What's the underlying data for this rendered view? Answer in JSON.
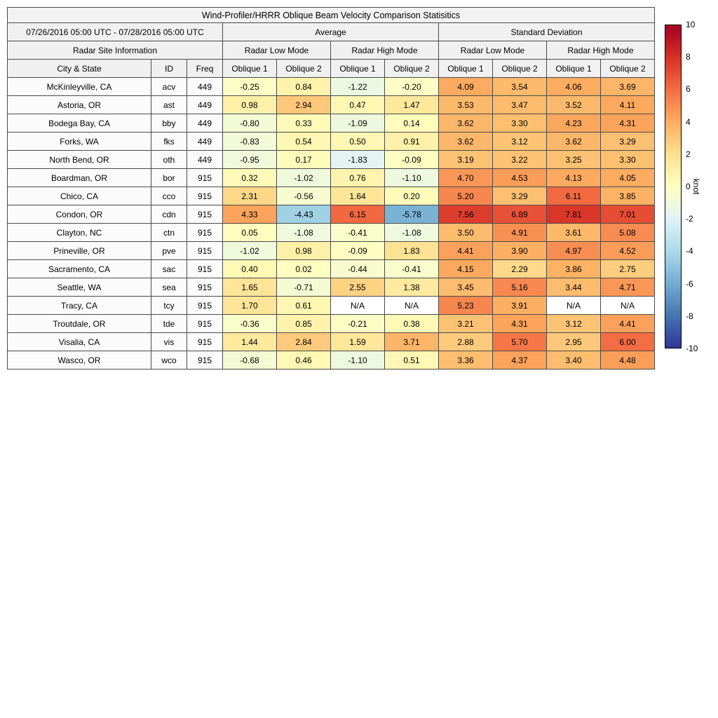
{
  "table": {
    "title": "Wind-Profiler/HRRR Oblique Beam Velocity Comparison Statisitics",
    "date_range": "07/26/2016 05:00 UTC - 07/28/2016 05:00 UTC",
    "average_label": "Average",
    "std_label": "Standard Deviation",
    "site_info_label": "Radar Site Information",
    "mode_headers": [
      "Radar Low Mode",
      "Radar High Mode",
      "Radar Low Mode",
      "Radar High Mode"
    ],
    "column_headers": [
      "City & State",
      "ID",
      "Freq",
      "Oblique 1",
      "Oblique 2",
      "Oblique 1",
      "Oblique 2",
      "Oblique 1",
      "Oblique 2",
      "Oblique 1",
      "Oblique 2"
    ]
  },
  "chart_data": {
    "type": "heatmap",
    "title": "Wind-Profiler/HRRR Oblique Beam Velocity Comparison Statisitics",
    "value_unit": "knot",
    "color_range": [
      -10,
      10
    ],
    "na_color": "#ffffff",
    "colormap_colors": [
      "#313695",
      "#4575b1",
      "#74add1",
      "#abd9e9",
      "#e0f3f8",
      "#ffffbf",
      "#fee090",
      "#fdae61",
      "#f46d43",
      "#d73027",
      "#a50026"
    ],
    "colorbar": {
      "ticks": [
        "10",
        "8",
        "6",
        "4",
        "2",
        "0",
        "-2",
        "-4",
        "-6",
        "-8",
        "-10"
      ],
      "tick_values": [
        10,
        8,
        6,
        4,
        2,
        0,
        -2,
        -4,
        -6,
        -8,
        -10
      ],
      "label": "knot"
    },
    "value_columns": [
      "Avg Low Oblique 1",
      "Avg Low Oblique 2",
      "Avg High Oblique 1",
      "Avg High Oblique 2",
      "Std Low Oblique 1",
      "Std Low Oblique 2",
      "Std High Oblique 1",
      "Std High Oblique 2"
    ],
    "rows": [
      {
        "city": "McKinleyville, CA",
        "id": "acv",
        "freq": "449",
        "values": [
          "-0.25",
          "0.84",
          "-1.22",
          "-0.20",
          "4.09",
          "3.54",
          "4.06",
          "3.69"
        ]
      },
      {
        "city": "Astoria, OR",
        "id": "ast",
        "freq": "449",
        "values": [
          "0.98",
          "2.94",
          "0.47",
          "1.47",
          "3.53",
          "3.47",
          "3.52",
          "4.11"
        ]
      },
      {
        "city": "Bodega Bay, CA",
        "id": "bby",
        "freq": "449",
        "values": [
          "-0.80",
          "0.33",
          "-1.09",
          "0.14",
          "3.62",
          "3.30",
          "4.23",
          "4.31"
        ]
      },
      {
        "city": "Forks, WA",
        "id": "fks",
        "freq": "449",
        "values": [
          "-0.83",
          "0.54",
          "0.50",
          "0.91",
          "3.62",
          "3.12",
          "3.62",
          "3.29"
        ]
      },
      {
        "city": "North Bend, OR",
        "id": "oth",
        "freq": "449",
        "values": [
          "-0.95",
          "0.17",
          "-1.83",
          "-0.09",
          "3.19",
          "3.22",
          "3.25",
          "3.30"
        ]
      },
      {
        "city": "Boardman, OR",
        "id": "bor",
        "freq": "915",
        "values": [
          "0.32",
          "-1.02",
          "0.76",
          "-1.10",
          "4.70",
          "4.53",
          "4.13",
          "4.05"
        ]
      },
      {
        "city": "Chico, CA",
        "id": "cco",
        "freq": "915",
        "values": [
          "2.31",
          "-0.56",
          "1.64",
          "0.20",
          "5.20",
          "3.29",
          "6.11",
          "3.85"
        ]
      },
      {
        "city": "Condon, OR",
        "id": "cdn",
        "freq": "915",
        "values": [
          "4.33",
          "-4.43",
          "6.15",
          "-5.78",
          "7.56",
          "6.89",
          "7.81",
          "7.01"
        ]
      },
      {
        "city": "Clayton, NC",
        "id": "ctn",
        "freq": "915",
        "values": [
          "0.05",
          "-1.08",
          "-0.41",
          "-1.08",
          "3.50",
          "4.91",
          "3.61",
          "5.08"
        ]
      },
      {
        "city": "Prineville, OR",
        "id": "pve",
        "freq": "915",
        "values": [
          "-1.02",
          "0.98",
          "-0.09",
          "1.83",
          "4.41",
          "3.90",
          "4.97",
          "4.52"
        ]
      },
      {
        "city": "Sacramento, CA",
        "id": "sac",
        "freq": "915",
        "values": [
          "0.40",
          "0.02",
          "-0.44",
          "-0.41",
          "4.15",
          "2.29",
          "3.86",
          "2.75"
        ]
      },
      {
        "city": "Seattle, WA",
        "id": "sea",
        "freq": "915",
        "values": [
          "1.65",
          "-0.71",
          "2.55",
          "1.38",
          "3.45",
          "5.16",
          "3.44",
          "4.71"
        ]
      },
      {
        "city": "Tracy, CA",
        "id": "tcy",
        "freq": "915",
        "values": [
          "1.70",
          "0.61",
          "N/A",
          "N/A",
          "5.23",
          "3.91",
          "N/A",
          "N/A"
        ]
      },
      {
        "city": "Troutdale, OR",
        "id": "tde",
        "freq": "915",
        "values": [
          "-0.36",
          "0.85",
          "-0.21",
          "0.38",
          "3.21",
          "4.31",
          "3.12",
          "4.41"
        ]
      },
      {
        "city": "Visalia, CA",
        "id": "vis",
        "freq": "915",
        "values": [
          "1.44",
          "2.84",
          "1.59",
          "3.71",
          "2.88",
          "5.70",
          "2.95",
          "6.00"
        ]
      },
      {
        "city": "Wasco, OR",
        "id": "wco",
        "freq": "915",
        "values": [
          "-0.68",
          "0.46",
          "-1.10",
          "0.51",
          "3.36",
          "4.37",
          "3.40",
          "4.48"
        ]
      }
    ]
  }
}
